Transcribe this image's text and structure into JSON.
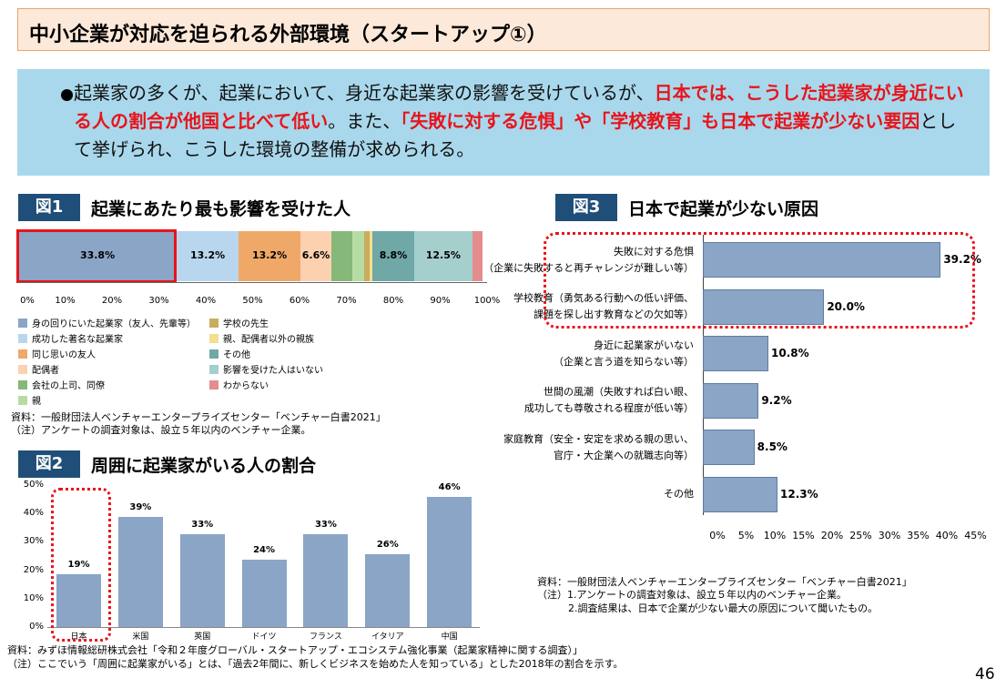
{
  "title": "中小企業が対応を迫られる外部環境（スタートアップ①）",
  "summary": {
    "p1": "起業家の多くが、起業において、身近な起業家の影響を受けているが、",
    "p2": "日本では、こうした起業家が身近にいる人の割合が他国と比べて低い",
    "p3": "。また、",
    "p4": "「失敗に対する危惧」や「学校教育」も日本で起業が少ない要因",
    "p5": "として挙げられ、こうした環境の整備が求められる。"
  },
  "fig1": {
    "tag": "図1",
    "title": "起業にあたり最も影響を受けた人",
    "source": "資料：一般財団法人ベンチャーエンタープライズセンター「ベンチャー白書2021」",
    "note": "（注）アンケートの調査対象は、設立５年以内のベンチャー企業。",
    "legend": [
      {
        "label": "身の回りにいた起業家（友人、先輩等）",
        "color": "#8aa5c5"
      },
      {
        "label": "成功した著名な起業家",
        "color": "#b8d7ee"
      },
      {
        "label": "同じ思いの友人",
        "color": "#f0a868"
      },
      {
        "label": "配偶者",
        "color": "#fbd1b0"
      },
      {
        "label": "会社の上司、同僚",
        "color": "#86b879"
      },
      {
        "label": "親",
        "color": "#b7dca3"
      },
      {
        "label": "学校の先生",
        "color": "#c9ad5f"
      },
      {
        "label": "親、配偶者以外の親族",
        "color": "#f4df8d"
      },
      {
        "label": "その他",
        "color": "#6fa8a6"
      },
      {
        "label": "影響を受けた人はいない",
        "color": "#a4cfcd"
      },
      {
        "label": "わからない",
        "color": "#e48c8e"
      }
    ]
  },
  "fig2": {
    "tag": "図2",
    "title": "周囲に起業家がいる人の割合",
    "source": "資料：みずほ情報総研株式会社「令和２年度グローバル・スタートアップ・エコシステム強化事業（起業家精神に関する調査）」",
    "note": "（注）ここでいう「周囲に起業家がいる」とは、「過去2年間に、新しくビジネスを始めた人を知っている」とした2018年の割合を示す。"
  },
  "fig3": {
    "tag": "図3",
    "title": "日本で起業が少ない原因",
    "source": "資料：一般財団法人ベンチャーエンタープライズセンター「ベンチャー白書2021」",
    "note1": "（注）1.アンケートの調査対象は、設立５年以内のベンチャー企業。",
    "note2": "2.調査結果は、日本で企業が少ない最大の原因について聞いたもの。"
  },
  "chart_data": [
    {
      "type": "bar",
      "orientation": "horizontal-stacked",
      "xlim": [
        0,
        100
      ],
      "xticks": [
        "0%",
        "10%",
        "20%",
        "30%",
        "40%",
        "50%",
        "60%",
        "70%",
        "80%",
        "90%",
        "100%"
      ],
      "series": [
        {
          "name": "身の回りにいた起業家（友人、先輩等）",
          "value": 33.8,
          "label": "33.8%",
          "color": "#8aa5c5"
        },
        {
          "name": "成功した著名な起業家",
          "value": 13.2,
          "label": "13.2%",
          "color": "#b8d7ee"
        },
        {
          "name": "同じ思いの友人",
          "value": 13.2,
          "label": "13.2%",
          "color": "#f0a868"
        },
        {
          "name": "配偶者",
          "value": 6.6,
          "label": "6.6%",
          "color": "#fbd1b0"
        },
        {
          "name": "会社の上司、同僚",
          "value": 4.4,
          "label": "",
          "color": "#86b879"
        },
        {
          "name": "親",
          "value": 2.6,
          "label": "",
          "color": "#b7dca3"
        },
        {
          "name": "学校の先生",
          "value": 1.1,
          "label": "",
          "color": "#c9ad5f"
        },
        {
          "name": "親、配偶者以外の親族",
          "value": 0.7,
          "label": "",
          "color": "#f4df8d"
        },
        {
          "name": "その他",
          "value": 8.8,
          "label": "8.8%",
          "color": "#6fa8a6"
        },
        {
          "name": "影響を受けた人はいない",
          "value": 12.5,
          "label": "12.5%",
          "color": "#a4cfcd"
        },
        {
          "name": "わからない",
          "value": 2.2,
          "label": "",
          "color": "#e48c8e"
        }
      ]
    },
    {
      "type": "bar",
      "categories": [
        "日本",
        "米国",
        "英国",
        "ドイツ",
        "フランス",
        "イタリア",
        "中国"
      ],
      "values": [
        19,
        39,
        33,
        24,
        33,
        26,
        46
      ],
      "labels": [
        "19%",
        "39%",
        "33%",
        "24%",
        "33%",
        "26%",
        "46%"
      ],
      "ylim": [
        0,
        50
      ],
      "yticks": [
        "0%",
        "10%",
        "20%",
        "30%",
        "40%",
        "50%"
      ],
      "ytick_values": [
        0,
        10,
        20,
        30,
        40,
        50
      ]
    },
    {
      "type": "bar",
      "orientation": "horizontal",
      "categories": [
        [
          "失敗に対する危惧",
          "（企業に失敗すると再チャレンジが難しい等）"
        ],
        [
          "学校教育（勇気ある行動への低い評価、",
          "課題を探し出す教育などの欠如等）"
        ],
        [
          "身近に起業家がいない",
          "（企業と言う道を知らない等）"
        ],
        [
          "世間の風潮（失敗すれば白い眼、",
          "成功しても尊敬される程度が低い等）"
        ],
        [
          "家庭教育（安全・安定を求める親の思い、",
          "官庁・大企業への就職志向等）"
        ],
        [
          "その他"
        ]
      ],
      "values": [
        39.2,
        20.0,
        10.8,
        9.2,
        8.5,
        12.3
      ],
      "labels": [
        "39.2%",
        "20.0%",
        "10.8%",
        "9.2%",
        "8.5%",
        "12.3%"
      ],
      "xlim": [
        0,
        45
      ],
      "xticks": [
        "0%",
        "5%",
        "10%",
        "15%",
        "20%",
        "25%",
        "30%",
        "35%",
        "40%",
        "45%"
      ]
    }
  ],
  "page_number": "46"
}
